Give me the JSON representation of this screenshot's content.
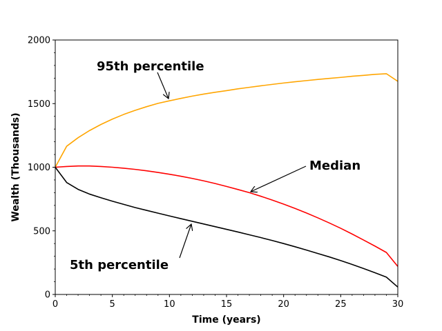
{
  "chart_data": {
    "type": "line",
    "title": "",
    "xlabel": "Time (years)",
    "ylabel": "Wealth (Thousands)",
    "xlim": [
      0,
      30
    ],
    "ylim": [
      0,
      2000
    ],
    "xticks": [
      0,
      5,
      10,
      15,
      20,
      25,
      30
    ],
    "yticks": [
      0,
      500,
      1000,
      1500,
      2000
    ],
    "grid": false,
    "x": [
      0,
      1,
      2,
      3,
      4,
      5,
      6,
      7,
      8,
      9,
      10,
      11,
      12,
      13,
      14,
      15,
      16,
      17,
      18,
      19,
      20,
      21,
      22,
      23,
      24,
      25,
      26,
      27,
      28,
      29,
      30
    ],
    "series": [
      {
        "name": "95th percentile",
        "color": "#FFA500",
        "values": [
          1000,
          1165,
          1232,
          1288,
          1336,
          1378,
          1415,
          1447,
          1476,
          1502,
          1522,
          1541,
          1559,
          1575,
          1589,
          1602,
          1616,
          1628,
          1640,
          1651,
          1662,
          1672,
          1681,
          1690,
          1698,
          1706,
          1715,
          1722,
          1730,
          1735,
          1675
        ]
      },
      {
        "name": "Median",
        "color": "#FF0000",
        "values": [
          1000,
          1006,
          1010,
          1010,
          1006,
          1000,
          992,
          983,
          972,
          959,
          945,
          929,
          912,
          893,
          872,
          849,
          825,
          800,
          772,
          742,
          710,
          676,
          640,
          602,
          562,
          520,
          475,
          428,
          380,
          330,
          220
        ]
      },
      {
        "name": "5th percentile",
        "color": "#000000",
        "values": [
          1000,
          880,
          826,
          789,
          760,
          733,
          708,
          683,
          661,
          639,
          617,
          596,
          575,
          554,
          533,
          512,
          491,
          469,
          447,
          424,
          400,
          375,
          349,
          322,
          295,
          266,
          236,
          204,
          171,
          136,
          58
        ]
      }
    ],
    "annotations": [
      {
        "text": "95th percentile",
        "series": "95th percentile",
        "target_x": 10,
        "target_y": 1522
      },
      {
        "text": "Median",
        "series": "Median",
        "target_x": 17,
        "target_y": 800
      },
      {
        "text": "5th percentile",
        "series": "5th percentile",
        "target_x": 12,
        "target_y": 560
      }
    ]
  }
}
